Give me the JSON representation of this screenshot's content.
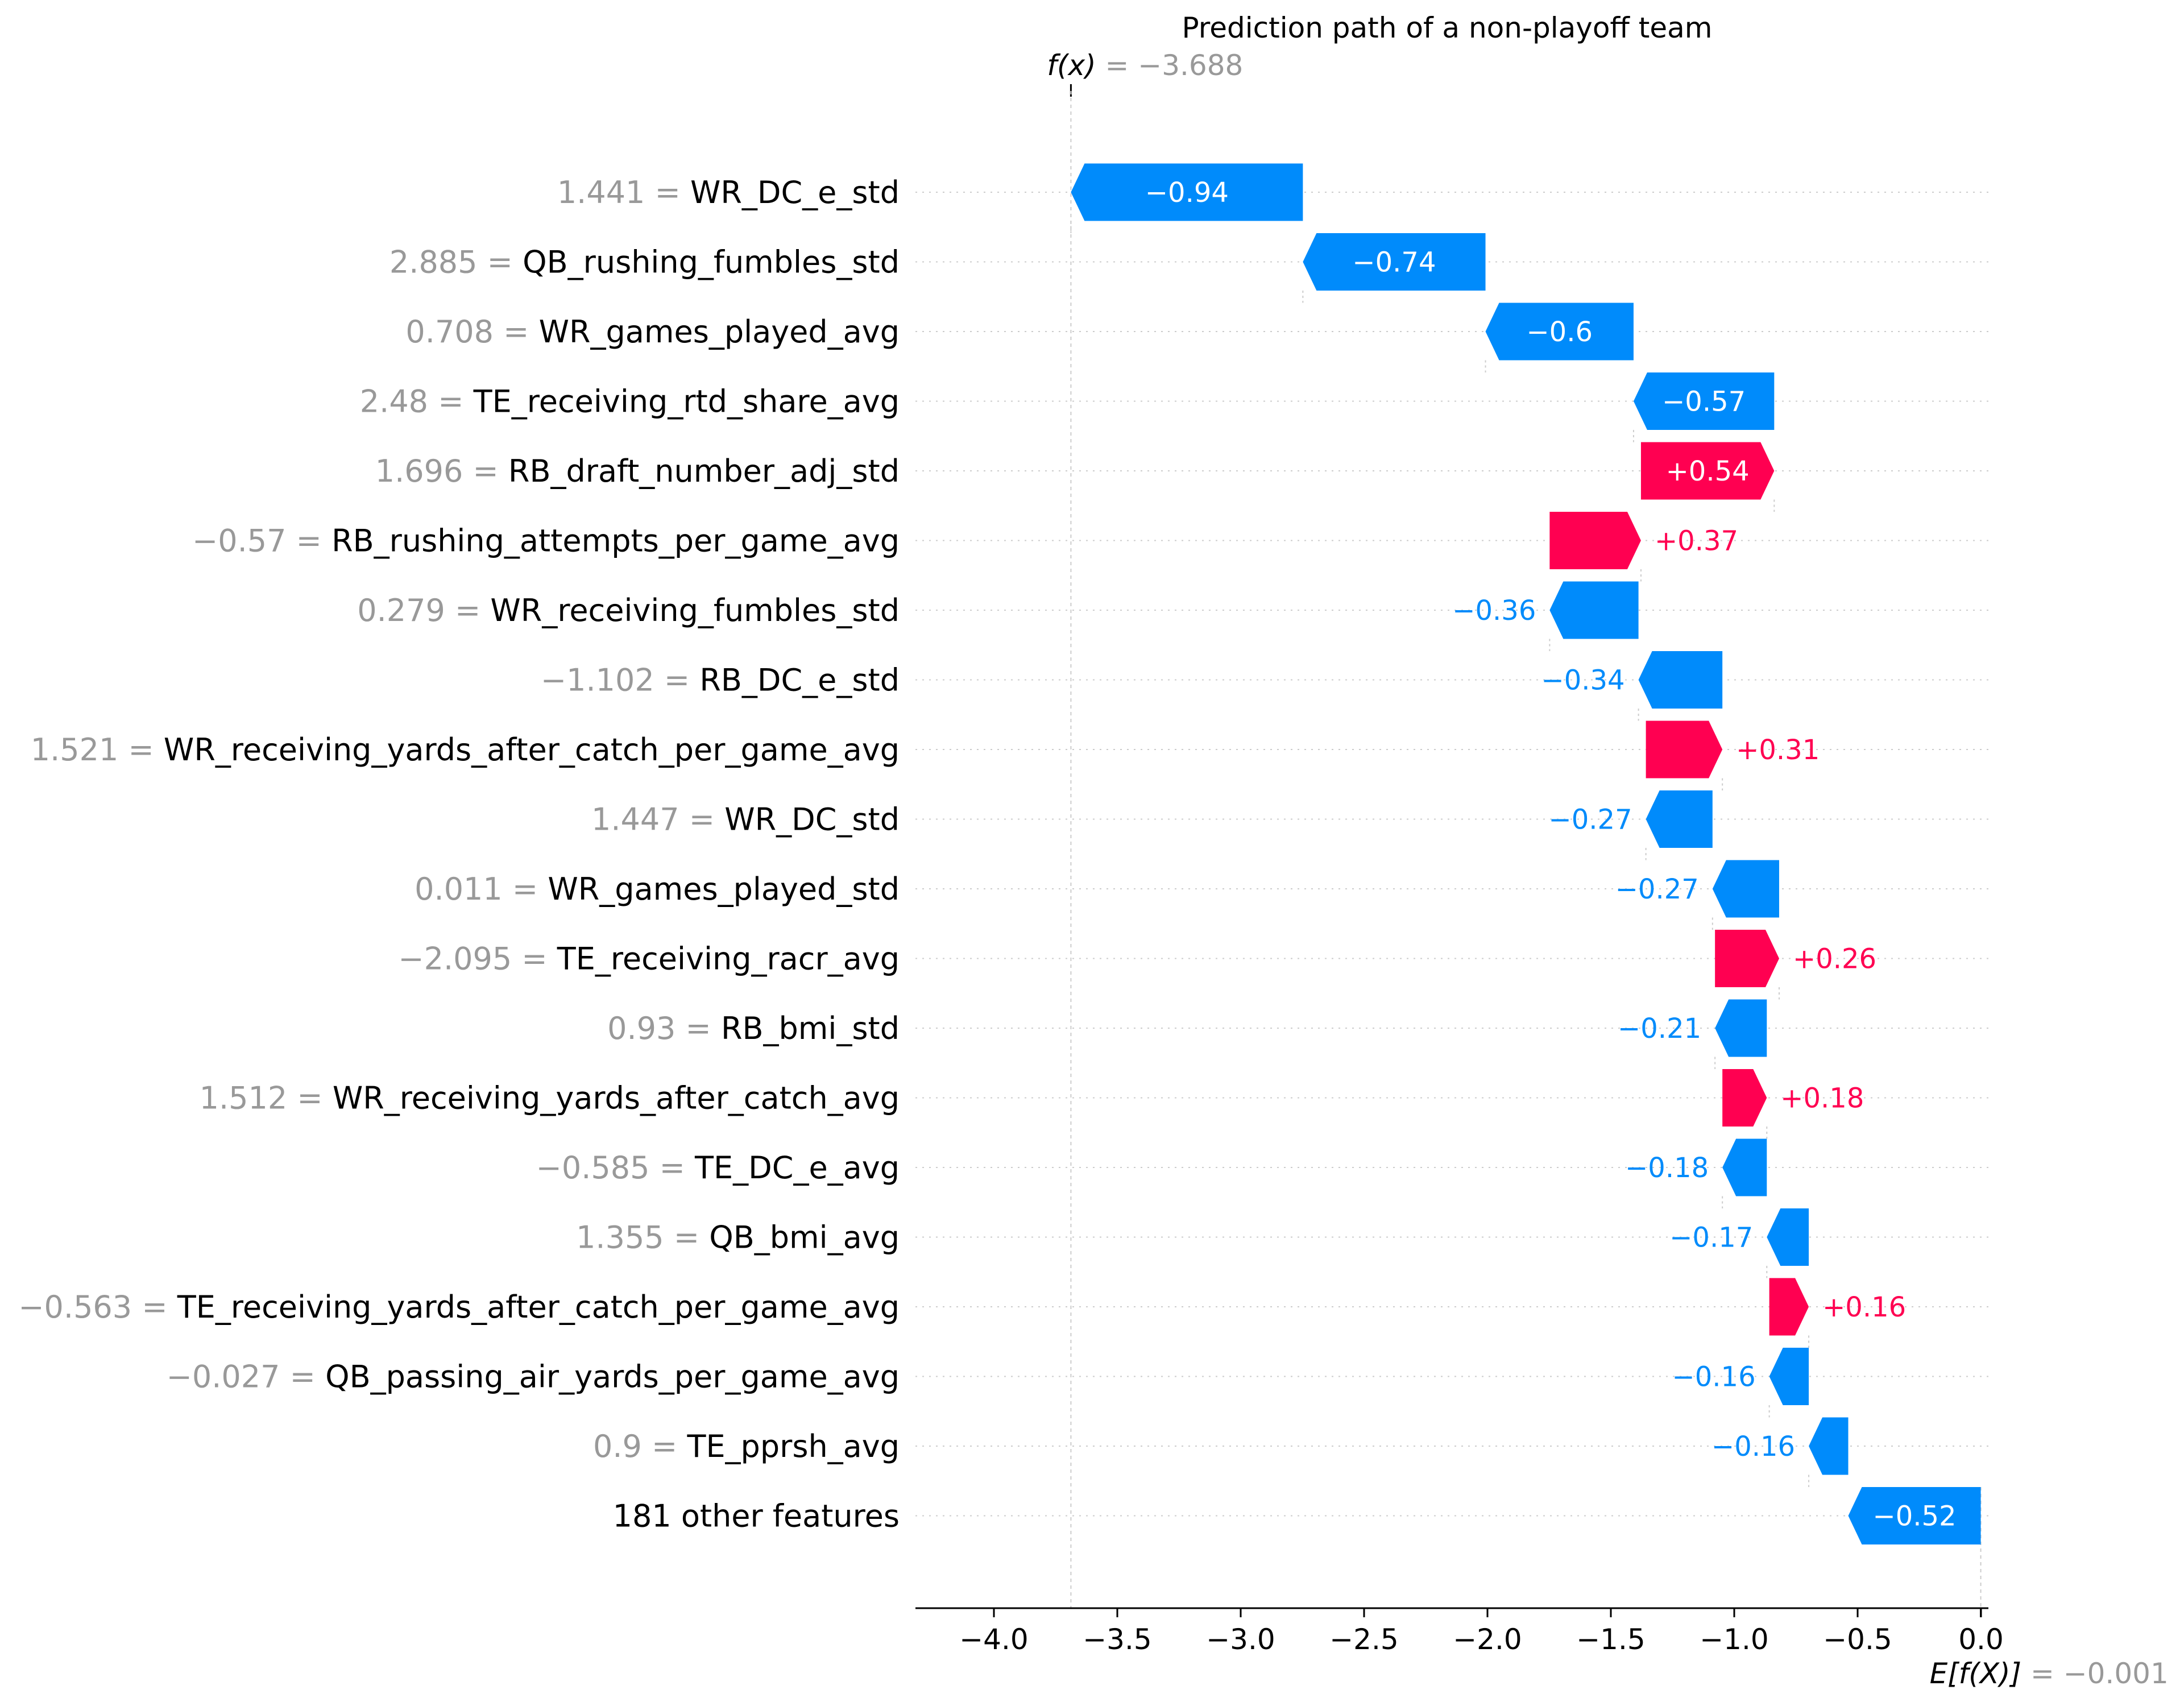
{
  "chart_data": {
    "type": "waterfall",
    "title": "Prediction path of a non-playoff team",
    "fx": {
      "label": "f(x)",
      "value": "−3.688",
      "number": -3.688
    },
    "base": {
      "label": "E[f(X)]",
      "value": "−0.001",
      "number": -0.001
    },
    "xlim": [
      -4.3,
      0.03
    ],
    "xticks": [
      -4.0,
      -3.5,
      -3.0,
      -2.5,
      -2.0,
      -1.5,
      -1.0,
      -0.5,
      0.0
    ],
    "xtick_labels": [
      "−4.0",
      "−3.5",
      "−3.0",
      "−2.5",
      "−2.0",
      "−1.5",
      "−1.0",
      "−0.5",
      "0.0"
    ],
    "colors": {
      "negative": "#008bfb",
      "positive": "#ff0051",
      "value_text": "#999999",
      "grid": "#cccccc"
    },
    "features": [
      {
        "value": "1.441",
        "name": "WR_DC_e_std",
        "shap": -0.94,
        "label": "−0.94",
        "start": -2.748,
        "end": -3.688
      },
      {
        "value": "2.885",
        "name": "QB_rushing_fumbles_std",
        "shap": -0.74,
        "label": "−0.74",
        "start": -2.008,
        "end": -2.748
      },
      {
        "value": "0.708",
        "name": "WR_games_played_avg",
        "shap": -0.6,
        "label": "−0.6",
        "start": -1.408,
        "end": -2.008
      },
      {
        "value": "2.48",
        "name": "TE_receiving_rtd_share_avg",
        "shap": -0.57,
        "label": "−0.57",
        "start": -0.838,
        "end": -1.408
      },
      {
        "value": "1.696",
        "name": "RB_draft_number_adj_std",
        "shap": 0.54,
        "label": "+0.54",
        "start": -1.378,
        "end": -0.838
      },
      {
        "value": "−0.57",
        "name": "RB_rushing_attempts_per_game_avg",
        "shap": 0.37,
        "label": "+0.37",
        "start": -1.748,
        "end": -1.378
      },
      {
        "value": "0.279",
        "name": "WR_receiving_fumbles_std",
        "shap": -0.36,
        "label": "−0.36",
        "start": -1.388,
        "end": -1.748
      },
      {
        "value": "−1.102",
        "name": "RB_DC_e_std",
        "shap": -0.34,
        "label": "−0.34",
        "start": -1.048,
        "end": -1.388
      },
      {
        "value": "1.521",
        "name": "WR_receiving_yards_after_catch_per_game_avg",
        "shap": 0.31,
        "label": "+0.31",
        "start": -1.358,
        "end": -1.048
      },
      {
        "value": "1.447",
        "name": "WR_DC_std",
        "shap": -0.27,
        "label": "−0.27",
        "start": -1.088,
        "end": -1.358
      },
      {
        "value": "0.011",
        "name": "WR_games_played_std",
        "shap": -0.27,
        "label": "−0.27",
        "start": -0.818,
        "end": -1.088
      },
      {
        "value": "−2.095",
        "name": "TE_receiving_racr_avg",
        "shap": 0.26,
        "label": "+0.26",
        "start": -1.078,
        "end": -0.818
      },
      {
        "value": "0.93",
        "name": "RB_bmi_std",
        "shap": -0.21,
        "label": "−0.21",
        "start": -0.868,
        "end": -1.078
      },
      {
        "value": "1.512",
        "name": "WR_receiving_yards_after_catch_avg",
        "shap": 0.18,
        "label": "+0.18",
        "start": -1.048,
        "end": -0.868
      },
      {
        "value": "−0.585",
        "name": "TE_DC_e_avg",
        "shap": -0.18,
        "label": "−0.18",
        "start": -0.868,
        "end": -1.048
      },
      {
        "value": "1.355",
        "name": "QB_bmi_avg",
        "shap": -0.17,
        "label": "−0.17",
        "start": -0.698,
        "end": -0.868
      },
      {
        "value": "−0.563",
        "name": "TE_receiving_yards_after_catch_per_game_avg",
        "shap": 0.16,
        "label": "+0.16",
        "start": -0.858,
        "end": -0.698
      },
      {
        "value": "−0.027",
        "name": "QB_passing_air_yards_per_game_avg",
        "shap": -0.16,
        "label": "−0.16",
        "start": -0.698,
        "end": -0.858
      },
      {
        "value": "0.9",
        "name": "TE_pprsh_avg",
        "shap": -0.16,
        "label": "−0.16",
        "start": -0.538,
        "end": -0.698
      },
      {
        "value": "",
        "name": "181 other features",
        "shap": -0.52,
        "label": "−0.52",
        "start": -0.001,
        "end": -0.538
      }
    ]
  }
}
